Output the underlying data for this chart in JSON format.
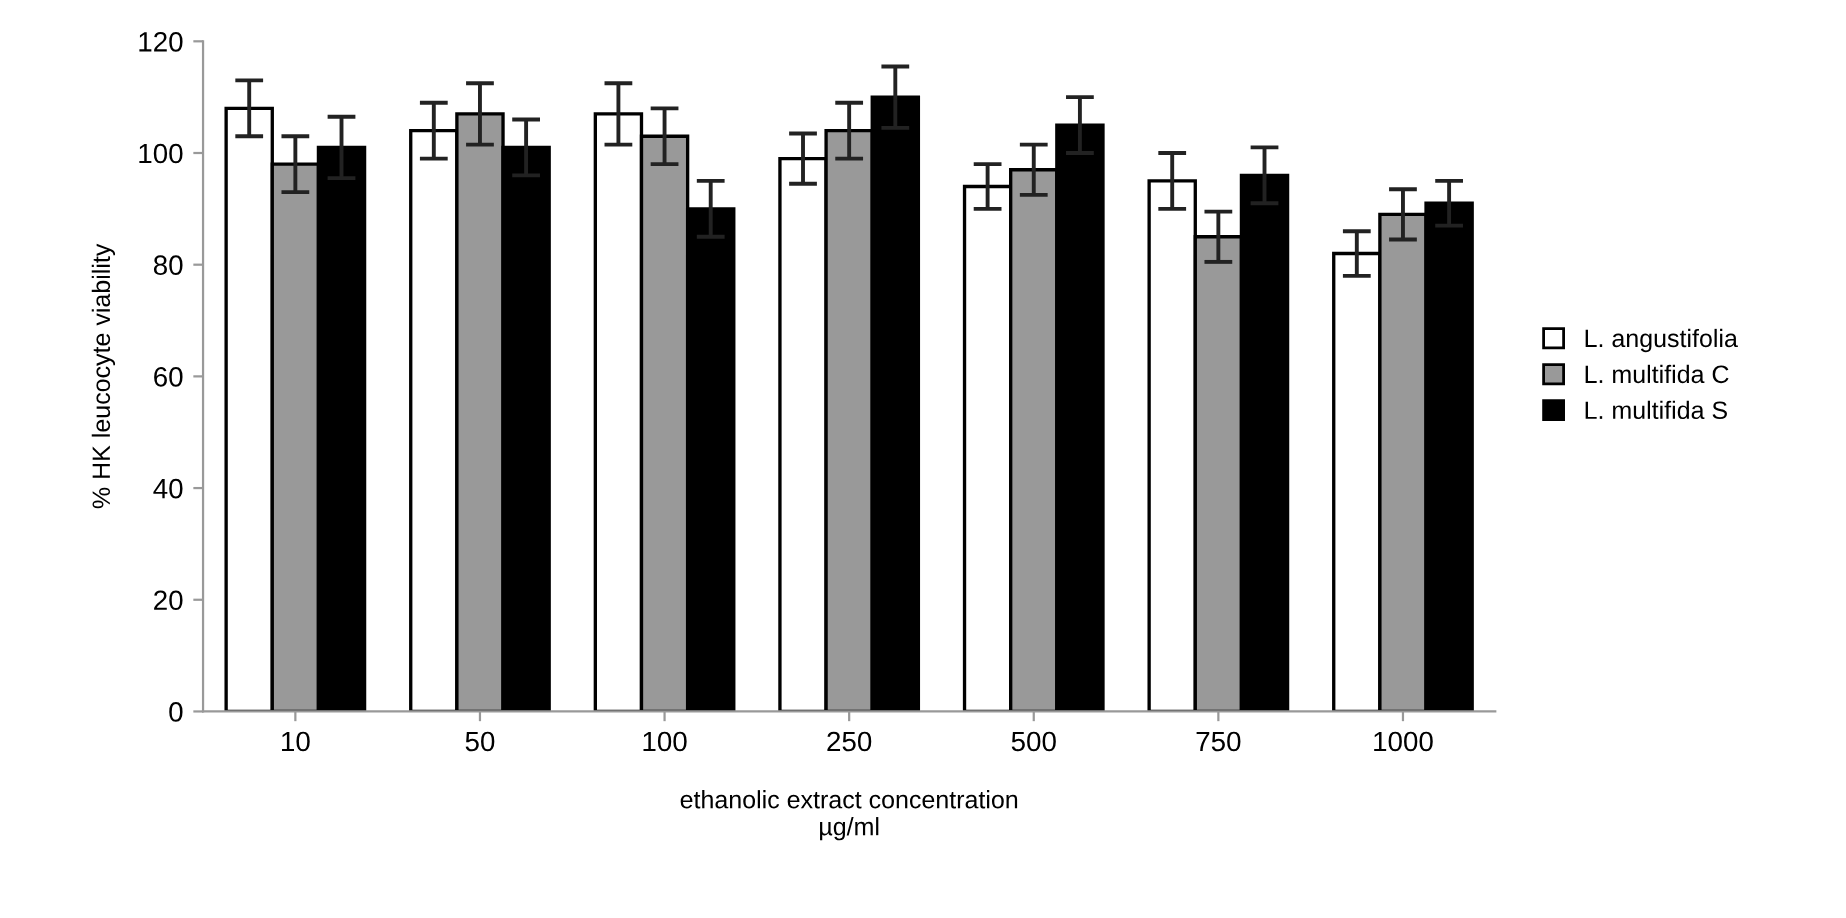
{
  "chart_data": {
    "type": "bar",
    "xlabel": "ethanolic extract concentration\nµg/ml",
    "ylabel": "% HK leucocyte viability",
    "categories": [
      "10",
      "50",
      "100",
      "250",
      "500",
      "750",
      "1000"
    ],
    "series": [
      {
        "name": "L. angustifolia",
        "color": "#ffffff",
        "values": [
          108,
          104,
          107,
          99,
          94,
          95,
          82
        ],
        "errors": [
          5,
          5,
          5.5,
          4.5,
          4,
          5,
          4
        ]
      },
      {
        "name": "L. multifida C",
        "color": "#999999",
        "values": [
          98,
          107,
          103,
          104,
          97,
          85,
          89
        ],
        "errors": [
          5,
          5.5,
          5,
          5,
          4.5,
          4.5,
          4.5
        ]
      },
      {
        "name": "L. multifida S",
        "color": "#000000",
        "values": [
          101,
          101,
          90,
          110,
          105,
          96,
          91
        ],
        "errors": [
          5.5,
          5,
          5,
          5.5,
          5,
          5,
          4
        ]
      }
    ],
    "ylim": [
      0,
      120
    ],
    "yticks": [
      0,
      20,
      40,
      60,
      80,
      100,
      120
    ],
    "grid": false,
    "legend": "right"
  }
}
